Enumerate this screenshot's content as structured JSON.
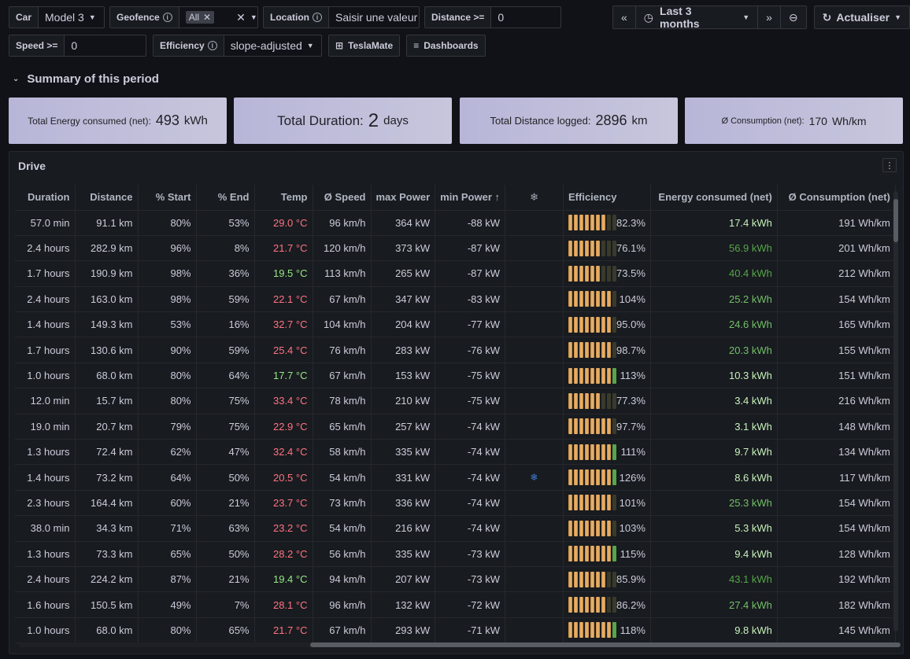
{
  "filters": {
    "car": {
      "label": "Car",
      "value": "Model 3"
    },
    "geofence": {
      "label": "Geofence",
      "value": "All"
    },
    "location": {
      "label": "Location",
      "placeholder": "Saisir une valeur"
    },
    "distance": {
      "label": "Distance >=",
      "value": "0"
    },
    "speed": {
      "label": "Speed >=",
      "value": "0"
    },
    "efficiency": {
      "label": "Efficiency",
      "value": "slope-adjusted"
    }
  },
  "links": {
    "teslamate": "TeslaMate",
    "dashboards": "Dashboards"
  },
  "time": {
    "range": "Last 3 months",
    "refresh": "Actualiser"
  },
  "section": {
    "title": "Summary of this period"
  },
  "stats": [
    {
      "title": "Total Energy consumed (net):",
      "value": "493",
      "unit": "kWh"
    },
    {
      "title": "Total Duration:",
      "value": "2",
      "unit": "days"
    },
    {
      "title": "Total Distance logged:",
      "value": "2896",
      "unit": "km"
    },
    {
      "title": "Ø Consumption (net):",
      "value": "170",
      "unit": "Wh/km"
    }
  ],
  "panel": {
    "title": "Drive"
  },
  "columns": [
    "Duration",
    "Distance",
    "% Start",
    "% End",
    "Temp",
    "Ø Speed",
    "max Power",
    "min Power ↑",
    "❄",
    "Efficiency",
    "Energy consumed (net)",
    "Ø Consumption (net)"
  ],
  "rows": [
    [
      "57.0 min",
      "91.1 km",
      "80%",
      "53%",
      "29.0 °C",
      "96 km/h",
      "364 kW",
      "-88 kW",
      "",
      "82.3%",
      "17.4 kWh",
      "191 Wh/km"
    ],
    [
      "2.4 hours",
      "282.9 km",
      "96%",
      "8%",
      "21.7 °C",
      "120 km/h",
      "373 kW",
      "-87 kW",
      "",
      "76.1%",
      "56.9 kWh",
      "201 Wh/km"
    ],
    [
      "1.7 hours",
      "190.9 km",
      "98%",
      "36%",
      "19.5 °C",
      "113 km/h",
      "265 kW",
      "-87 kW",
      "",
      "73.5%",
      "40.4 kWh",
      "212 Wh/km"
    ],
    [
      "2.4 hours",
      "163.0 km",
      "98%",
      "59%",
      "22.1 °C",
      "67 km/h",
      "347 kW",
      "-83 kW",
      "",
      "104%",
      "25.2 kWh",
      "154 Wh/km"
    ],
    [
      "1.4 hours",
      "149.3 km",
      "53%",
      "16%",
      "32.7 °C",
      "104 km/h",
      "204 kW",
      "-77 kW",
      "",
      "95.0%",
      "24.6 kWh",
      "165 Wh/km"
    ],
    [
      "1.7 hours",
      "130.6 km",
      "90%",
      "59%",
      "25.4 °C",
      "76 km/h",
      "283 kW",
      "-76 kW",
      "",
      "98.7%",
      "20.3 kWh",
      "155 Wh/km"
    ],
    [
      "1.0 hours",
      "68.0 km",
      "80%",
      "64%",
      "17.7 °C",
      "67 km/h",
      "153 kW",
      "-75 kW",
      "",
      "113%",
      "10.3 kWh",
      "151 Wh/km"
    ],
    [
      "12.0 min",
      "15.7 km",
      "80%",
      "75%",
      "33.4 °C",
      "78 km/h",
      "210 kW",
      "-75 kW",
      "",
      "77.3%",
      "3.4 kWh",
      "216 Wh/km"
    ],
    [
      "19.0 min",
      "20.7 km",
      "79%",
      "75%",
      "22.9 °C",
      "65 km/h",
      "257 kW",
      "-74 kW",
      "",
      "97.7%",
      "3.1 kWh",
      "148 Wh/km"
    ],
    [
      "1.3 hours",
      "72.4 km",
      "62%",
      "47%",
      "32.4 °C",
      "58 km/h",
      "335 kW",
      "-74 kW",
      "",
      "111%",
      "9.7 kWh",
      "134 Wh/km"
    ],
    [
      "1.4 hours",
      "73.2 km",
      "64%",
      "50%",
      "20.5 °C",
      "54 km/h",
      "331 kW",
      "-74 kW",
      "❄",
      "126%",
      "8.6 kWh",
      "117 Wh/km"
    ],
    [
      "2.3 hours",
      "164.4 km",
      "60%",
      "21%",
      "23.7 °C",
      "73 km/h",
      "336 kW",
      "-74 kW",
      "",
      "101%",
      "25.3 kWh",
      "154 Wh/km"
    ],
    [
      "38.0 min",
      "34.3 km",
      "71%",
      "63%",
      "23.2 °C",
      "54 km/h",
      "216 kW",
      "-74 kW",
      "",
      "103%",
      "5.3 kWh",
      "154 Wh/km"
    ],
    [
      "1.3 hours",
      "73.3 km",
      "65%",
      "50%",
      "28.2 °C",
      "56 km/h",
      "335 kW",
      "-73 kW",
      "",
      "115%",
      "9.4 kWh",
      "128 Wh/km"
    ],
    [
      "2.4 hours",
      "224.2 km",
      "87%",
      "21%",
      "19.4 °C",
      "94 km/h",
      "207 kW",
      "-73 kW",
      "",
      "85.9%",
      "43.1 kWh",
      "192 Wh/km"
    ],
    [
      "1.6 hours",
      "150.5 km",
      "49%",
      "7%",
      "28.1 °C",
      "96 km/h",
      "132 kW",
      "-72 kW",
      "",
      "86.2%",
      "27.4 kWh",
      "182 Wh/km"
    ],
    [
      "1.0 hours",
      "68.0 km",
      "80%",
      "65%",
      "21.7 °C",
      "67 km/h",
      "293 kW",
      "-71 kW",
      "",
      "118%",
      "9.8 kWh",
      "145 Wh/km"
    ]
  ],
  "colors": {
    "warm_temp": "#ff7383",
    "cool_temp": "#96e885",
    "stat_bg": "#bdbbd9",
    "gauge": "#eab979",
    "gauge_green": "#56a64b"
  }
}
